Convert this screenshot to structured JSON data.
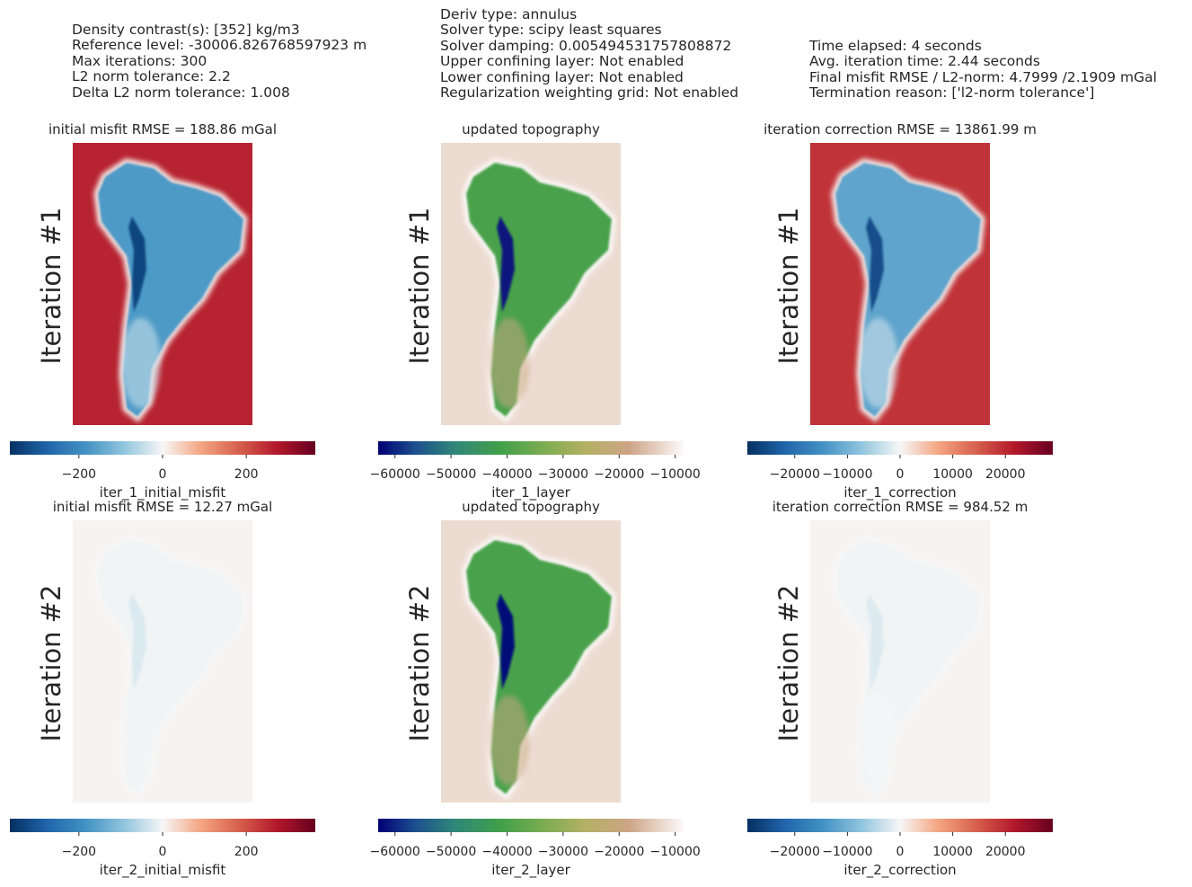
{
  "header": {
    "left": [
      "Density contrast(s): [352] kg/m3",
      "Reference level: -30006.826768597923 m",
      "Max iterations: 300",
      "L2 norm tolerance: 2.2",
      "Delta L2 norm tolerance: 1.008"
    ],
    "middle": [
      "Deriv type: annulus",
      "Solver type: scipy least squares",
      "Solver damping: 0.005494531757808872",
      "Upper confining layer: Not enabled",
      "Lower confining layer: Not enabled",
      "Regularization weighting grid: Not enabled"
    ],
    "right": [
      "Time elapsed: 4 seconds",
      "Avg. iteration time: 2.44 seconds",
      "Final misfit RMSE / L2-norm: 4.7999 /2.1909 mGal",
      "Termination reason: ['l2-norm tolerance']"
    ]
  },
  "chart_data": [
    {
      "type": "heatmap",
      "row": "Iteration #1",
      "title": "initial misfit RMSE = 188.86 mGal",
      "colormap": "RdBu_r",
      "colorbar_label": "iter_1_initial_misfit",
      "clim": [
        -365,
        365
      ],
      "ticks": [
        -200,
        0,
        200
      ],
      "tick_labels": [
        "−200",
        "0",
        "200"
      ],
      "land_value": -170,
      "ocean_value": 260,
      "trench_value": -330
    },
    {
      "type": "heatmap",
      "row": "Iteration #1",
      "title": "updated topography",
      "colormap": "gist_earth",
      "colorbar_label": "iter_1_layer",
      "clim": [
        -63000,
        -8500
      ],
      "ticks": [
        -60000,
        -50000,
        -40000,
        -30000,
        -20000,
        -10000
      ],
      "tick_labels": [
        "−60000",
        "−50000",
        "−40000",
        "−30000",
        "−20000",
        "−10000"
      ],
      "land_value": -40000,
      "ocean_value": -12000,
      "trench_value": -61000
    },
    {
      "type": "heatmap",
      "row": "Iteration #1",
      "title": "iteration correction RMSE = 13861.99 m",
      "colormap": "RdBu_r",
      "colorbar_label": "iter_1_correction",
      "clim": [
        -29000,
        29000
      ],
      "ticks": [
        -20000,
        -10000,
        0,
        10000,
        20000
      ],
      "tick_labels": [
        "−20000",
        "−10000",
        "0",
        "10000",
        "20000"
      ],
      "land_value": -12000,
      "ocean_value": 19000,
      "trench_value": -25000
    },
    {
      "type": "heatmap",
      "row": "Iteration #2",
      "title": "initial misfit RMSE = 12.27 mGal",
      "colormap": "RdBu_r",
      "colorbar_label": "iter_2_initial_misfit",
      "clim": [
        -365,
        365
      ],
      "ticks": [
        -200,
        0,
        200
      ],
      "tick_labels": [
        "−200",
        "0",
        "200"
      ],
      "land_value": -6,
      "ocean_value": 5,
      "trench_value": -25
    },
    {
      "type": "heatmap",
      "row": "Iteration #2",
      "title": "updated topography",
      "colormap": "gist_earth",
      "colorbar_label": "iter_2_layer",
      "clim": [
        -63000,
        -8500
      ],
      "ticks": [
        -60000,
        -50000,
        -40000,
        -30000,
        -20000,
        -10000
      ],
      "tick_labels": [
        "−60000",
        "−50000",
        "−40000",
        "−30000",
        "−20000",
        "−10000"
      ],
      "land_value": -40000,
      "ocean_value": -12000,
      "trench_value": -62000
    },
    {
      "type": "heatmap",
      "row": "Iteration #2",
      "title": "iteration correction RMSE = 984.52 m",
      "colormap": "RdBu_r",
      "colorbar_label": "iter_2_correction",
      "clim": [
        -29000,
        29000
      ],
      "ticks": [
        -20000,
        -10000,
        0,
        10000,
        20000
      ],
      "tick_labels": [
        "−20000",
        "−10000",
        "0",
        "10000",
        "20000"
      ],
      "land_value": -450,
      "ocean_value": 350,
      "trench_value": -1900
    }
  ]
}
